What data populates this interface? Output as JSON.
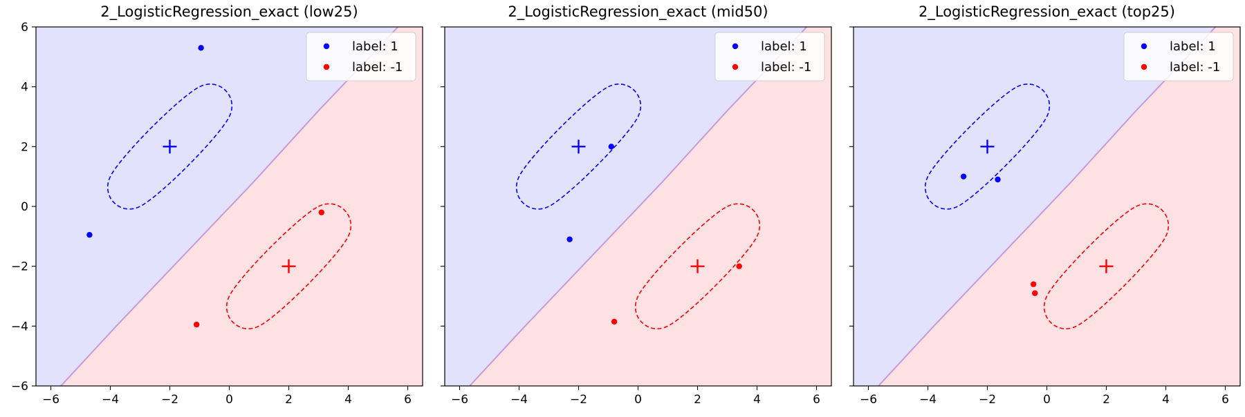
{
  "chart_data": [
    {
      "type": "scatter",
      "title": "2_LogisticRegression_exact (low25)",
      "xlim": [
        -6.5,
        6.5
      ],
      "ylim": [
        -6,
        6
      ],
      "xticks": [
        -6,
        -4,
        -2,
        0,
        2,
        4,
        6
      ],
      "yticks": [
        -6,
        -4,
        -2,
        0,
        2,
        4,
        6
      ],
      "show_yticklabels": true,
      "legend": {
        "placement": "top-right",
        "entries": [
          {
            "label": "label: 1",
            "color": "#0000ff"
          },
          {
            "label": "label: -1",
            "color": "#ff0000"
          }
        ]
      },
      "region_colors": {
        "positive": "#e2e2fc",
        "negative": "#fde1e3",
        "boundary": "#c79ad8"
      },
      "decision_boundary": [
        [
          -6.5,
          -6.9
        ],
        [
          -3.8,
          -4.0
        ],
        [
          -1.5,
          -1.6
        ],
        [
          0.8,
          0.8
        ],
        [
          3.0,
          3.2
        ],
        [
          5.3,
          5.6
        ],
        [
          6.5,
          6.9
        ]
      ],
      "centers": [
        {
          "x": -2,
          "y": 2,
          "label": 1,
          "color": "#0000ff"
        },
        {
          "x": 2,
          "y": -2,
          "label": -1,
          "color": "#ff0000"
        }
      ],
      "ellipses": [
        {
          "points": [
            [
              -1,
              4
            ],
            [
              0,
              3
            ],
            [
              -3,
              0
            ],
            [
              -4,
              1
            ]
          ],
          "color": "#0000ff"
        },
        {
          "points": [
            [
              3,
              0
            ],
            [
              4,
              -1
            ],
            [
              1,
              -4
            ],
            [
              0,
              -3
            ]
          ],
          "color": "#ff0000"
        }
      ],
      "series": [
        {
          "name": "label: 1",
          "color": "#0000ff",
          "points": [
            [
              -0.95,
              5.3
            ],
            [
              -4.7,
              -0.95
            ]
          ]
        },
        {
          "name": "label: -1",
          "color": "#ff0000",
          "points": [
            [
              3.1,
              -0.2
            ],
            [
              -1.1,
              -3.95
            ]
          ]
        }
      ]
    },
    {
      "type": "scatter",
      "title": "2_LogisticRegression_exact (mid50)",
      "xlim": [
        -6.5,
        6.5
      ],
      "ylim": [
        -6,
        6
      ],
      "xticks": [
        -6,
        -4,
        -2,
        0,
        2,
        4,
        6
      ],
      "yticks": [
        -6,
        -4,
        -2,
        0,
        2,
        4,
        6
      ],
      "show_yticklabels": false,
      "legend": {
        "placement": "top-right",
        "entries": [
          {
            "label": "label: 1",
            "color": "#0000ff"
          },
          {
            "label": "label: -1",
            "color": "#ff0000"
          }
        ]
      },
      "region_colors": {
        "positive": "#e2e2fc",
        "negative": "#fde1e3",
        "boundary": "#c79ad8"
      },
      "decision_boundary": [
        [
          -6.5,
          -6.9
        ],
        [
          -3.8,
          -4.0
        ],
        [
          -1.5,
          -1.6
        ],
        [
          0.8,
          0.8
        ],
        [
          3.0,
          3.2
        ],
        [
          5.3,
          5.6
        ],
        [
          6.5,
          6.9
        ]
      ],
      "centers": [
        {
          "x": -2,
          "y": 2,
          "label": 1,
          "color": "#0000ff"
        },
        {
          "x": 2,
          "y": -2,
          "label": -1,
          "color": "#ff0000"
        }
      ],
      "ellipses": [
        {
          "points": [
            [
              -1,
              4
            ],
            [
              0,
              3
            ],
            [
              -3,
              0
            ],
            [
              -4,
              1
            ]
          ],
          "color": "#0000ff"
        },
        {
          "points": [
            [
              3,
              0
            ],
            [
              4,
              -1
            ],
            [
              1,
              -4
            ],
            [
              0,
              -3
            ]
          ],
          "color": "#ff0000"
        }
      ],
      "series": [
        {
          "name": "label: 1",
          "color": "#0000ff",
          "points": [
            [
              -0.9,
              2.0
            ],
            [
              -2.3,
              -1.1
            ]
          ]
        },
        {
          "name": "label: -1",
          "color": "#ff0000",
          "points": [
            [
              3.4,
              -2.0
            ],
            [
              -0.8,
              -3.85
            ]
          ]
        }
      ]
    },
    {
      "type": "scatter",
      "title": "2_LogisticRegression_exact (top25)",
      "xlim": [
        -6.5,
        6.5
      ],
      "ylim": [
        -6,
        6
      ],
      "xticks": [
        -6,
        -4,
        -2,
        0,
        2,
        4,
        6
      ],
      "yticks": [
        -6,
        -4,
        -2,
        0,
        2,
        4,
        6
      ],
      "show_yticklabels": false,
      "legend": {
        "placement": "top-right",
        "entries": [
          {
            "label": "label: 1",
            "color": "#0000ff"
          },
          {
            "label": "label: -1",
            "color": "#ff0000"
          }
        ]
      },
      "region_colors": {
        "positive": "#e2e2fc",
        "negative": "#fde1e3",
        "boundary": "#c79ad8"
      },
      "decision_boundary": [
        [
          -6.5,
          -6.9
        ],
        [
          -3.8,
          -4.0
        ],
        [
          -1.5,
          -1.6
        ],
        [
          0.8,
          0.8
        ],
        [
          3.0,
          3.2
        ],
        [
          5.3,
          5.6
        ],
        [
          6.5,
          6.9
        ]
      ],
      "centers": [
        {
          "x": -2,
          "y": 2,
          "label": 1,
          "color": "#0000ff"
        },
        {
          "x": 2,
          "y": -2,
          "label": -1,
          "color": "#ff0000"
        }
      ],
      "ellipses": [
        {
          "points": [
            [
              -1,
              4
            ],
            [
              0,
              3
            ],
            [
              -3,
              0
            ],
            [
              -4,
              1
            ]
          ],
          "color": "#0000ff"
        },
        {
          "points": [
            [
              3,
              0
            ],
            [
              4,
              -1
            ],
            [
              1,
              -4
            ],
            [
              0,
              -3
            ]
          ],
          "color": "#ff0000"
        }
      ],
      "series": [
        {
          "name": "label: 1",
          "color": "#0000ff",
          "points": [
            [
              -2.8,
              1.0
            ],
            [
              -1.65,
              0.9
            ]
          ]
        },
        {
          "name": "label: -1",
          "color": "#ff0000",
          "points": [
            [
              -0.45,
              -2.6
            ],
            [
              -0.4,
              -2.9
            ]
          ]
        }
      ]
    }
  ]
}
